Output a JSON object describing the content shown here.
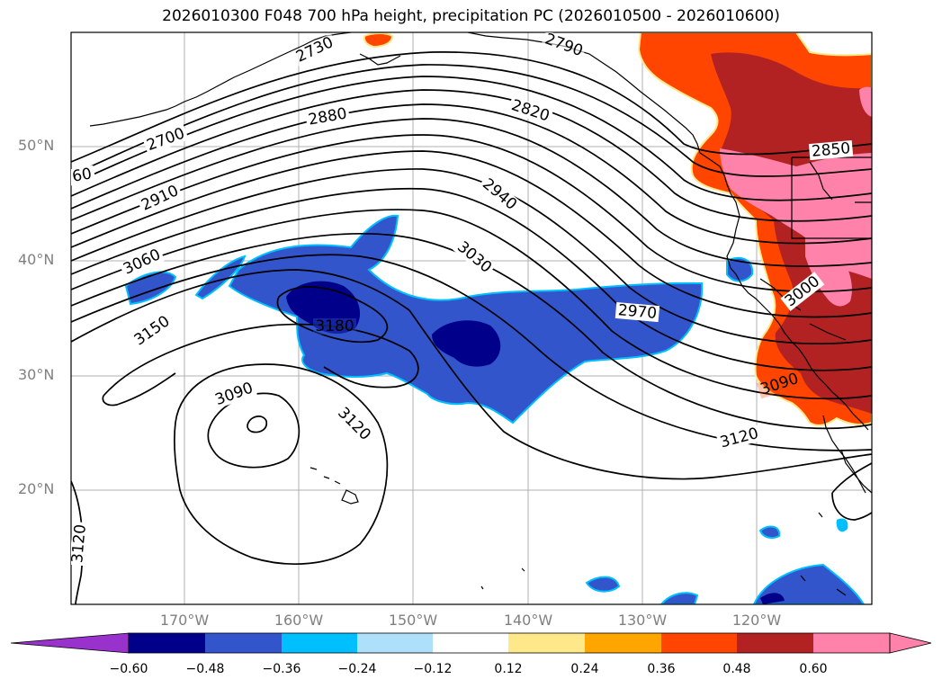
{
  "title": "2026010300 F048 700 hPa height, precipitation PC (2026010500 - 2026010600)",
  "latitude_labels": [
    "50°N",
    "40°N",
    "30°N",
    "20°N"
  ],
  "longitude_labels": [
    "170°W",
    "160°W",
    "150°W",
    "140°W",
    "130°W",
    "120°W"
  ],
  "colorbar": {
    "ticks": [
      "−0.60",
      "−0.48",
      "−0.36",
      "−0.24",
      "−0.12",
      "0.12",
      "0.24",
      "0.36",
      "0.48",
      "0.60"
    ],
    "colors": [
      "#9932cc",
      "#00008b",
      "#3355cc",
      "#00bfff",
      "#aee0fb",
      "#ffffff",
      "#ffe88a",
      "#ffa500",
      "#ff4500",
      "#b22222",
      "#ff82ab"
    ]
  },
  "contour_labels": [
    "2730",
    "2790",
    "2880",
    "2820",
    "2700",
    "60",
    "2850",
    "2910",
    "2940",
    "3030",
    "3060",
    "3000",
    "2970",
    "3180",
    "3150",
    "3090",
    "3090",
    "3120",
    "3120",
    "3120"
  ]
}
